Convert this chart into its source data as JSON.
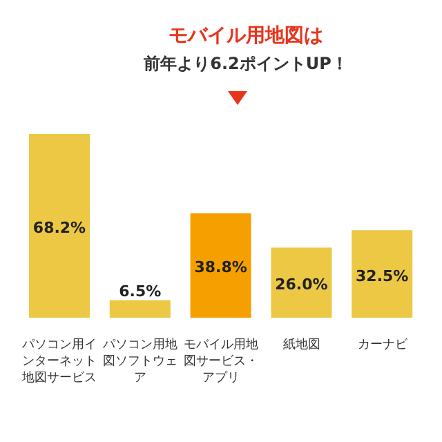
{
  "chart_data": {
    "type": "bar",
    "categories": [
      "パソコン用インターネット地図サービス",
      "パソコン用地図ソフトウェア",
      "モバイル用地図サービス・アプリ",
      "紙地図",
      "カーナビ"
    ],
    "values": [
      68.2,
      6.5,
      38.8,
      26.0,
      32.5
    ],
    "value_labels": [
      "68.2%",
      "6.5%",
      "38.8%",
      "26.0%",
      "32.5%"
    ],
    "colors": [
      "#ecc845",
      "#ecc845",
      "#f5a000",
      "#ecc845",
      "#ecc845"
    ],
    "annotations": [
      "モバイル用地図は",
      "前年より6.2ポイントUP！"
    ],
    "grid": false,
    "legend": false
  }
}
